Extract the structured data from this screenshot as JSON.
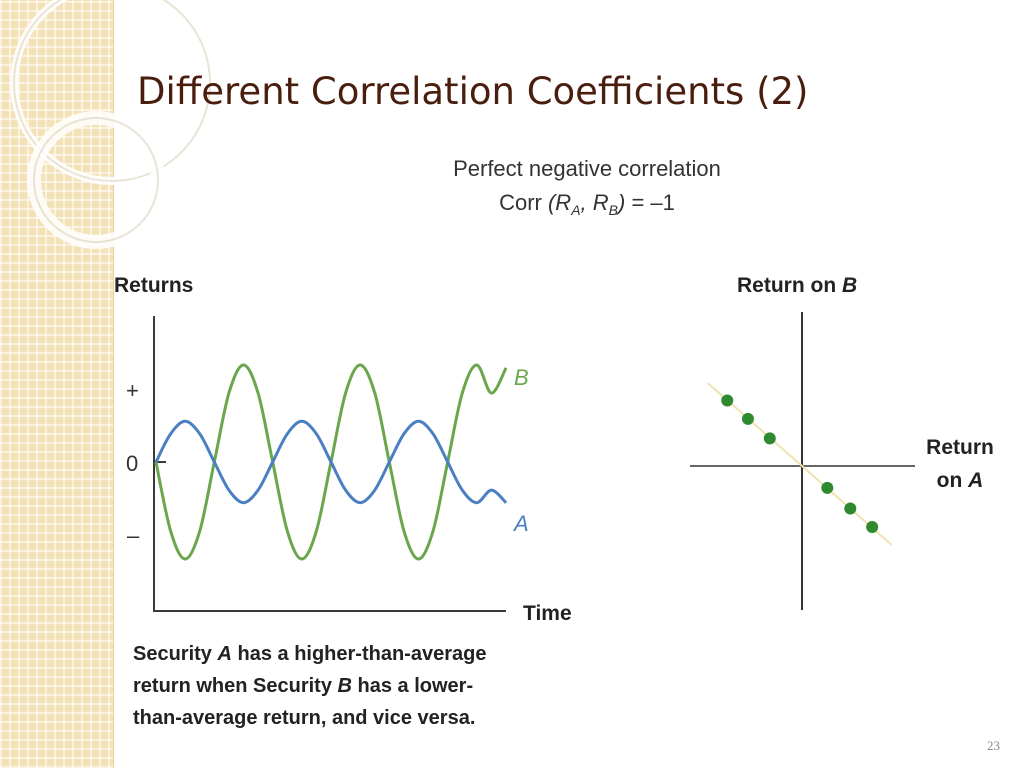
{
  "slide": {
    "title": "Different Correlation Coefficients (2)",
    "number": "23"
  },
  "figure": {
    "heading_line1": "Perfect negative correlation",
    "heading_line2": "Corr (R_A, R_B) = –1",
    "caption_lines": [
      "Security A has a higher-than-average",
      "return when Security B has a lower-",
      "than-average return, and vice versa."
    ]
  },
  "chart_data": [
    {
      "type": "line",
      "title": "",
      "ylabel": "Returns",
      "xlabel": "Time",
      "yticks": [
        "+",
        "0",
        "–"
      ],
      "ylim": [
        -1,
        1
      ],
      "x": [
        0,
        0.25,
        0.5,
        0.75,
        1,
        1.25,
        1.5,
        1.75,
        2,
        2.25,
        2.5,
        2.75,
        3,
        3.25,
        3.5,
        3.75,
        4,
        4.25,
        4.5,
        4.75,
        5,
        5.25,
        5.5,
        5.75,
        6
      ],
      "series": [
        {
          "name": "A",
          "color": "#4a7fc1",
          "values": [
            0,
            0.29,
            0.42,
            0.29,
            0,
            -0.29,
            -0.42,
            -0.29,
            0,
            0.29,
            0.42,
            0.29,
            0,
            -0.29,
            -0.42,
            -0.29,
            0,
            0.29,
            0.42,
            0.29,
            0,
            -0.29,
            -0.42,
            -0.29,
            -0.42
          ]
        },
        {
          "name": "B",
          "color": "#6aa64b",
          "values": [
            0,
            -0.71,
            -1,
            -0.71,
            0,
            0.71,
            1,
            0.71,
            0,
            -0.71,
            -1,
            -0.71,
            0,
            0.71,
            1,
            0.71,
            0,
            -0.71,
            -1,
            -0.71,
            0,
            0.71,
            1,
            0.71,
            0.97
          ]
        }
      ],
      "grid": false
    },
    {
      "type": "scatter",
      "title": "",
      "xlabel": "Return on A",
      "ylabel": "Return on B",
      "xlim": [
        -1,
        1
      ],
      "ylim": [
        -1,
        1
      ],
      "points_x": [
        -0.65,
        -0.47,
        -0.28,
        0.22,
        0.42,
        0.61
      ],
      "points_y": [
        0.57,
        0.41,
        0.24,
        -0.19,
        -0.37,
        -0.53
      ],
      "trendline": {
        "slope": -0.88,
        "intercept": 0
      },
      "point_color": "#2f8a2f",
      "trendline_color": "#f0e2b0",
      "grid": false
    }
  ]
}
